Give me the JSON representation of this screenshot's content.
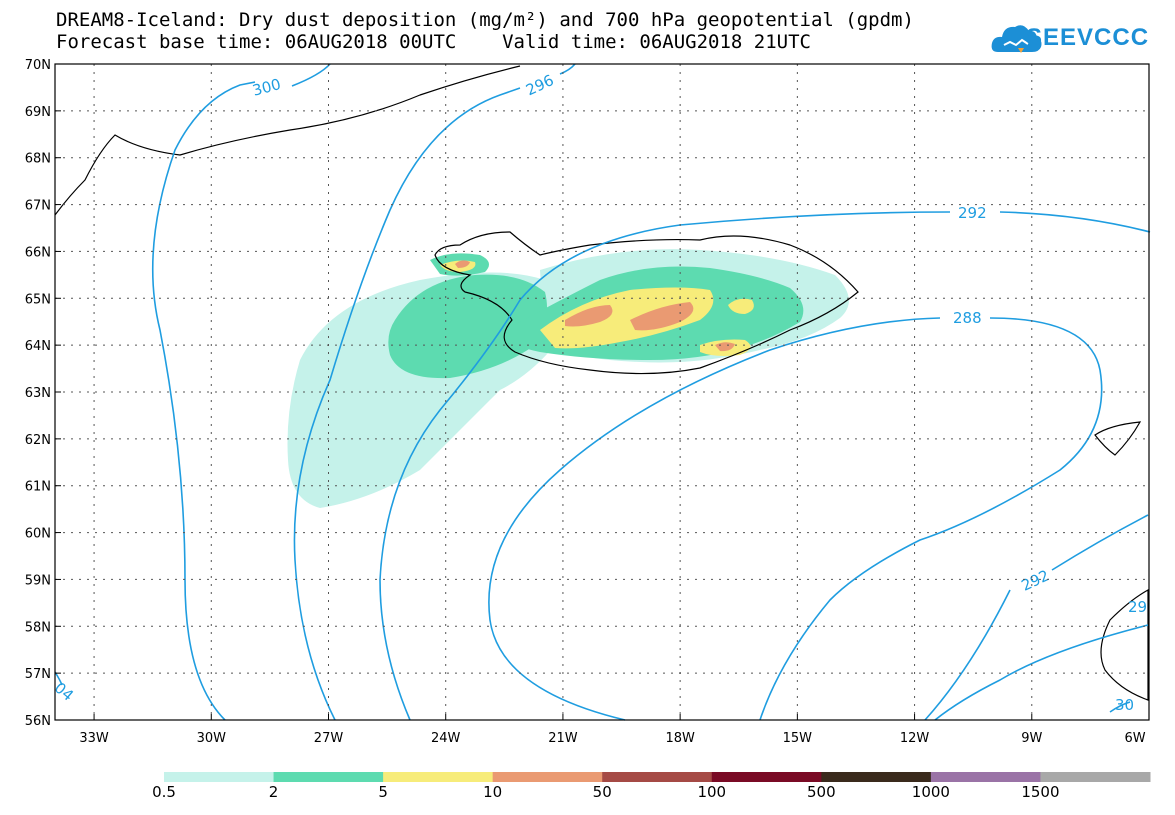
{
  "title": {
    "line1": "DREAM8-Iceland: Dry dust deposition (mg/m²) and 700 hPa geopotential (gpdm)",
    "line2": "Forecast base time: 06AUG2018 00UTC    Valid time: 06AUG2018 21UTC"
  },
  "logo": {
    "text": "SEEVCCC",
    "icon": "cloud-icon"
  },
  "map": {
    "lon_range": [
      -34,
      -6
    ],
    "lat_range": [
      56,
      70
    ],
    "lat_labels": [
      "70N",
      "69N",
      "68N",
      "67N",
      "66N",
      "65N",
      "64N",
      "63N",
      "62N",
      "61N",
      "60N",
      "59N",
      "58N",
      "57N",
      "56N"
    ],
    "lon_labels": [
      "33W",
      "30W",
      "27W",
      "24W",
      "21W",
      "18W",
      "15W",
      "12W",
      "9W",
      "6W"
    ],
    "contour_labels": [
      "300",
      "296",
      "292",
      "288",
      "292",
      "04",
      "30",
      "29"
    ],
    "contour_color": "#1f9de0"
  },
  "legend": {
    "labels": [
      "0.5",
      "2",
      "5",
      "10",
      "50",
      "100",
      "500",
      "1000",
      "1500"
    ],
    "colors": [
      "#c5f2ea",
      "#5ddbb0",
      "#f7ec7a",
      "#ea9a72",
      "#a54a45",
      "#7a0a25",
      "#3a2a1c",
      "#9a73a6",
      "#a8a8a8"
    ]
  }
}
